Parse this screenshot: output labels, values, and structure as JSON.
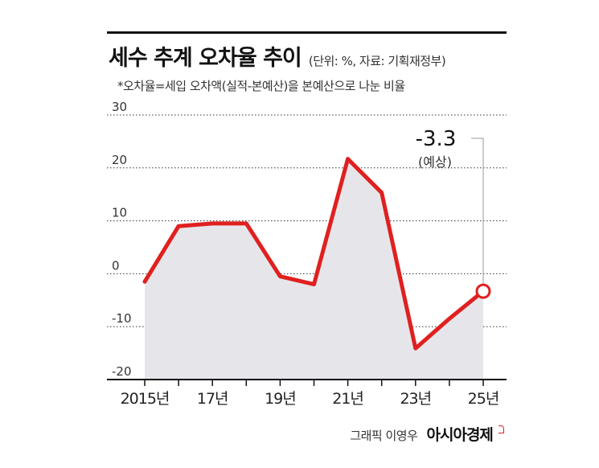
{
  "title": "세수 추계 오차율 추이",
  "unit_note": "(단위: %, 자료: 기획재정부)",
  "footnote": "*오차율=세입 오차액(실적-본예산)을 본예산으로 나눈 비율",
  "credit": "그래픽 이영우",
  "brand": "아시아경제",
  "colors": {
    "line": "#e02020",
    "area": "#e6e6ea",
    "grid": "#333333"
  },
  "chart_data": {
    "type": "area",
    "x": [
      2015,
      2016,
      2017,
      2018,
      2019,
      2020,
      2021,
      2022,
      2023,
      2024,
      2025
    ],
    "x_tick_labels": [
      {
        "x": 2015,
        "label": "2015년"
      },
      {
        "x": 2017,
        "label": "17년"
      },
      {
        "x": 2019,
        "label": "19년"
      },
      {
        "x": 2021,
        "label": "21년"
      },
      {
        "x": 2023,
        "label": "23년"
      },
      {
        "x": 2025,
        "label": "25년"
      }
    ],
    "values": [
      -1.5,
      9.0,
      9.5,
      9.5,
      -0.5,
      -2.0,
      21.7,
      15.3,
      -14.1,
      -8.5,
      -3.3
    ],
    "ylim": [
      -20,
      30
    ],
    "y_ticks": [
      -20,
      -10,
      0,
      10,
      20,
      30
    ],
    "y_tick_labels": [
      "-20",
      "-10",
      "0",
      "10",
      "20",
      "30"
    ],
    "grid": "horizontal dotted",
    "annotation": {
      "x": 2025,
      "value_label": "-3.3",
      "sub_label": "(예상)"
    }
  }
}
